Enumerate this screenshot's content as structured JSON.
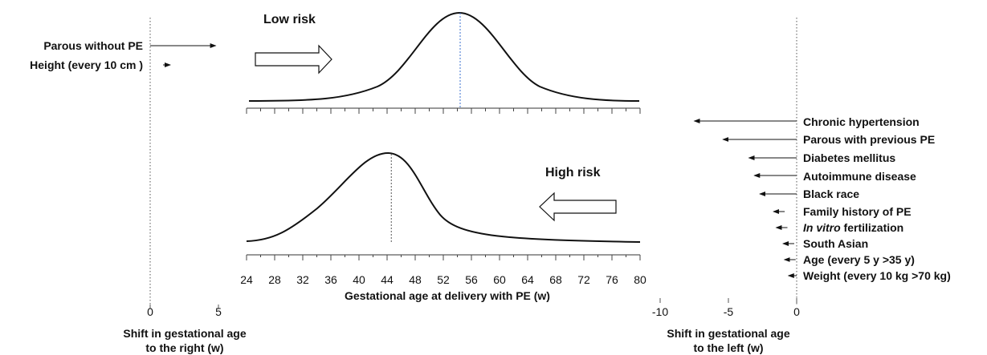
{
  "left_panel": {
    "factors": [
      {
        "label": "Parous without PE",
        "shift_weeks": 4.8
      },
      {
        "label": "Height (every 10 cm )",
        "shift_weeks": 1.0
      }
    ],
    "axis": {
      "ticks": [
        "0",
        "5"
      ],
      "title_line1": "Shift in gestational age",
      "title_line2": "to the right (w)"
    }
  },
  "center_panel": {
    "low_risk_label": "Low risk",
    "high_risk_label": "High risk",
    "low_risk_peak_weeks": 54.4,
    "high_risk_peak_weeks": 44.6,
    "x_tick_labels": [
      "24",
      "28",
      "32",
      "36",
      "40",
      "44",
      "48",
      "52",
      "56",
      "60",
      "64",
      "68",
      "72",
      "76",
      "80"
    ],
    "x_title": "Gestational age at delivery with PE (w)"
  },
  "right_panel": {
    "factors": [
      {
        "label": "Chronic hypertension",
        "shift_weeks": -7.5
      },
      {
        "label": "Parous with previous PE",
        "shift_weeks": -5.4
      },
      {
        "label": "Diabetes mellitus",
        "shift_weeks": -3.5
      },
      {
        "label": "Autoimmune disease",
        "shift_weeks": -3.1
      },
      {
        "label": "Black race",
        "shift_weeks": -2.7
      },
      {
        "label": "Family history of PE",
        "shift_weeks": -1.7
      },
      {
        "label_italic": "In vitro",
        "label_rest": " fertilization",
        "shift_weeks": -1.5
      },
      {
        "label": "South Asian",
        "shift_weeks": -1.0
      },
      {
        "label": "Age (every 5 y >35 y)",
        "shift_weeks": -0.9
      },
      {
        "label": "Weight (every 10 kg >70 kg)",
        "shift_weeks": -0.6
      }
    ],
    "axis": {
      "ticks": [
        "-10",
        "-5",
        "0"
      ],
      "title_line1": "Shift in gestational age",
      "title_line2": "to the left (w)"
    }
  }
}
